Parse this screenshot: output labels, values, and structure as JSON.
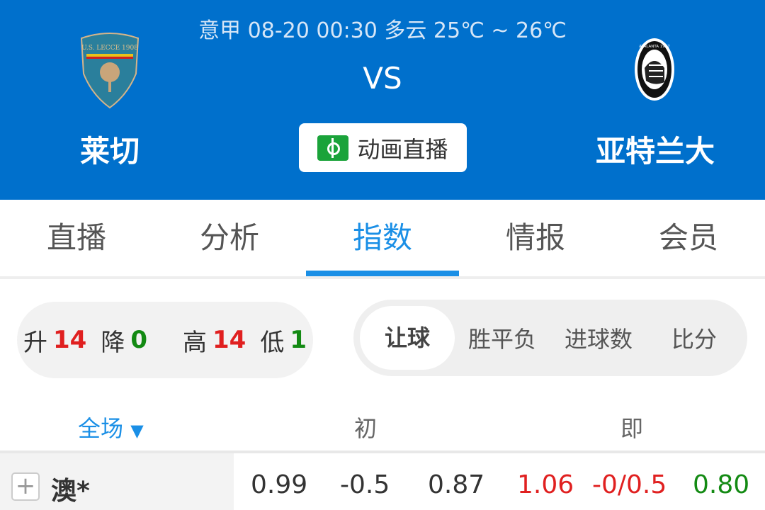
{
  "match": {
    "info": "意甲 08-20 00:30 多云 25℃ ~ 26℃",
    "vs": "VS",
    "home": "莱切",
    "away": "亚特兰大",
    "live_button": "动画直播",
    "home_logo_text": "U.S. LECCE 1908",
    "away_logo_text": "ATALANTA 1907"
  },
  "tabs": [
    {
      "label": "直播"
    },
    {
      "label": "分析"
    },
    {
      "label": "指数",
      "active": true
    },
    {
      "label": "情报"
    },
    {
      "label": "会员"
    }
  ],
  "stats": {
    "up_label": "升",
    "up": "14",
    "down_label": "降",
    "down": "0",
    "high_label": "高",
    "high": "14",
    "low_label": "低",
    "low": "1"
  },
  "segments": [
    {
      "label": "让球",
      "active": true
    },
    {
      "label": "胜平负"
    },
    {
      "label": "进球数"
    },
    {
      "label": "比分"
    }
  ],
  "columns": {
    "scope": "全场",
    "initial": "初",
    "live": "即"
  },
  "rows": [
    {
      "company": "澳*",
      "initial": [
        "0.99",
        "-0.5",
        "0.87"
      ],
      "live": [
        "1.06",
        "-0/0.5",
        "0.80"
      ],
      "live_colors": [
        "#e02020",
        "#e02020",
        "#138a13"
      ]
    }
  ],
  "colors": {
    "header": "#0070cc",
    "accent": "#1a8fe6",
    "up": "#e02020",
    "down": "#138a13"
  }
}
